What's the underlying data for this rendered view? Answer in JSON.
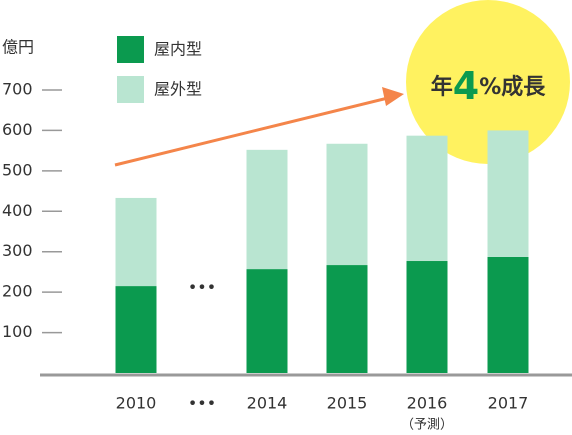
{
  "chart_data": {
    "type": "stacked_bar",
    "y_axis_label": "億円",
    "categories": [
      "2010",
      "•••",
      "2014",
      "2015",
      "2016",
      "2017"
    ],
    "category_notes": {
      "4": "（予測）"
    },
    "series": [
      {
        "name": "屋内型",
        "color": "#0b9a4f",
        "values": [
          215,
          null,
          257,
          267,
          277,
          287
        ]
      },
      {
        "name": "屋外型",
        "color": "#b9e5d1",
        "values": [
          218,
          null,
          295,
          300,
          310,
          313
        ]
      }
    ],
    "ylim": [
      0,
      700
    ],
    "yticks": [
      100,
      200,
      300,
      400,
      500,
      600,
      700
    ],
    "annotation": {
      "prefix": "年",
      "highlight": "4",
      "suffix": "%成長"
    }
  }
}
